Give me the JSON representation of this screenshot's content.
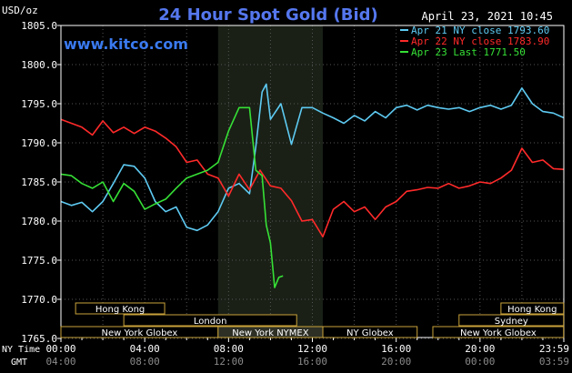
{
  "header": {
    "title": "24 Hour Spot Gold (Bid)",
    "timestamp": "April 23, 2021 10:45",
    "unit": "USD/oz",
    "site": "www.kitco.com"
  },
  "chart_data": {
    "type": "line",
    "title": "24 Hour Spot Gold (Bid)",
    "ylabel": "USD/oz",
    "ylim": [
      1765.0,
      1805.0
    ],
    "yticks": [
      "1805.0",
      "1800.0",
      "1795.0",
      "1790.0",
      "1785.0",
      "1780.0",
      "1775.0",
      "1770.0",
      "1765.0"
    ],
    "x_range_hours": [
      0,
      24
    ],
    "xticks_ny": [
      "00:00",
      "04:00",
      "08:00",
      "12:00",
      "16:00",
      "20:00",
      "23:59"
    ],
    "xticks_gmt": [
      "04:00",
      "08:00",
      "12:00",
      "16:00",
      "20:00",
      "00:00",
      "03:59"
    ],
    "x_row_labels": {
      "ny": "NY Time",
      "gmt": "GMT"
    },
    "grid": true,
    "legend_position": "top-right",
    "highlight_hours": [
      7.5,
      12.5
    ],
    "series": [
      {
        "name": "Apr 21 NY close 1793.60",
        "color": "#5ecaf2",
        "points": [
          [
            0,
            1782.5
          ],
          [
            0.5,
            1782.0
          ],
          [
            1.0,
            1782.4
          ],
          [
            1.5,
            1781.2
          ],
          [
            2.0,
            1782.5
          ],
          [
            2.5,
            1784.8
          ],
          [
            3.0,
            1787.2
          ],
          [
            3.5,
            1787.0
          ],
          [
            4.0,
            1785.5
          ],
          [
            4.5,
            1782.5
          ],
          [
            5.0,
            1781.2
          ],
          [
            5.5,
            1781.8
          ],
          [
            6.0,
            1779.2
          ],
          [
            6.5,
            1778.8
          ],
          [
            7.0,
            1779.5
          ],
          [
            7.5,
            1781.2
          ],
          [
            8.0,
            1784.2
          ],
          [
            8.5,
            1784.8
          ],
          [
            9.0,
            1783.5
          ],
          [
            9.3,
            1789.5
          ],
          [
            9.6,
            1796.5
          ],
          [
            9.8,
            1797.5
          ],
          [
            10.0,
            1793.0
          ],
          [
            10.5,
            1795.0
          ],
          [
            11.0,
            1789.8
          ],
          [
            11.5,
            1794.5
          ],
          [
            12.0,
            1794.5
          ],
          [
            12.5,
            1793.8
          ],
          [
            13.0,
            1793.2
          ],
          [
            13.5,
            1792.5
          ],
          [
            14.0,
            1793.5
          ],
          [
            14.5,
            1792.8
          ],
          [
            15.0,
            1794.0
          ],
          [
            15.5,
            1793.2
          ],
          [
            16.0,
            1794.5
          ],
          [
            16.5,
            1794.8
          ],
          [
            17.0,
            1794.2
          ],
          [
            17.5,
            1794.8
          ],
          [
            18.0,
            1794.5
          ],
          [
            18.5,
            1794.3
          ],
          [
            19.0,
            1794.5
          ],
          [
            19.5,
            1794.0
          ],
          [
            20.0,
            1794.5
          ],
          [
            20.5,
            1794.8
          ],
          [
            21.0,
            1794.3
          ],
          [
            21.5,
            1794.8
          ],
          [
            22.0,
            1797.0
          ],
          [
            22.5,
            1795.0
          ],
          [
            23.0,
            1794.0
          ],
          [
            23.5,
            1793.8
          ],
          [
            24.0,
            1793.2
          ]
        ]
      },
      {
        "name": "Apr 22 NY close 1783.90",
        "color": "#ff2a2a",
        "points": [
          [
            0,
            1793.0
          ],
          [
            0.5,
            1792.5
          ],
          [
            1.0,
            1792.0
          ],
          [
            1.5,
            1791.0
          ],
          [
            2.0,
            1792.8
          ],
          [
            2.5,
            1791.3
          ],
          [
            3.0,
            1792.0
          ],
          [
            3.5,
            1791.2
          ],
          [
            4.0,
            1792.0
          ],
          [
            4.5,
            1791.5
          ],
          [
            5.0,
            1790.6
          ],
          [
            5.5,
            1789.5
          ],
          [
            6.0,
            1787.5
          ],
          [
            6.5,
            1787.8
          ],
          [
            7.0,
            1786.0
          ],
          [
            7.5,
            1785.5
          ],
          [
            8.0,
            1783.2
          ],
          [
            8.5,
            1786.0
          ],
          [
            9.0,
            1784.0
          ],
          [
            9.5,
            1786.5
          ],
          [
            10.0,
            1784.5
          ],
          [
            10.5,
            1784.2
          ],
          [
            11.0,
            1782.6
          ],
          [
            11.5,
            1780.0
          ],
          [
            12.0,
            1780.2
          ],
          [
            12.5,
            1778.0
          ],
          [
            13.0,
            1781.5
          ],
          [
            13.5,
            1782.5
          ],
          [
            14.0,
            1781.2
          ],
          [
            14.5,
            1781.8
          ],
          [
            15.0,
            1780.2
          ],
          [
            15.5,
            1781.8
          ],
          [
            16.0,
            1782.5
          ],
          [
            16.5,
            1783.8
          ],
          [
            17.0,
            1784.0
          ],
          [
            17.5,
            1784.3
          ],
          [
            18.0,
            1784.2
          ],
          [
            18.5,
            1784.8
          ],
          [
            19.0,
            1784.2
          ],
          [
            19.5,
            1784.5
          ],
          [
            20.0,
            1785.0
          ],
          [
            20.5,
            1784.8
          ],
          [
            21.0,
            1785.5
          ],
          [
            21.5,
            1786.5
          ],
          [
            22.0,
            1789.3
          ],
          [
            22.5,
            1787.5
          ],
          [
            23.0,
            1787.8
          ],
          [
            23.5,
            1786.7
          ],
          [
            24.0,
            1786.6
          ]
        ]
      },
      {
        "name": "Apr 23 Last 1771.50",
        "color": "#36e036",
        "points": [
          [
            0,
            1786.0
          ],
          [
            0.5,
            1785.8
          ],
          [
            1.0,
            1784.8
          ],
          [
            1.5,
            1784.2
          ],
          [
            2.0,
            1785.0
          ],
          [
            2.5,
            1782.5
          ],
          [
            3.0,
            1784.8
          ],
          [
            3.5,
            1783.8
          ],
          [
            4.0,
            1781.5
          ],
          [
            4.5,
            1782.2
          ],
          [
            5.0,
            1782.8
          ],
          [
            5.5,
            1784.2
          ],
          [
            6.0,
            1785.5
          ],
          [
            6.5,
            1786.0
          ],
          [
            7.0,
            1786.5
          ],
          [
            7.5,
            1787.5
          ],
          [
            8.0,
            1791.5
          ],
          [
            8.5,
            1794.5
          ],
          [
            9.0,
            1794.5
          ],
          [
            9.3,
            1786.5
          ],
          [
            9.6,
            1785.8
          ],
          [
            9.8,
            1779.5
          ],
          [
            10.0,
            1777.2
          ],
          [
            10.2,
            1771.5
          ],
          [
            10.4,
            1772.8
          ],
          [
            10.6,
            1773.0
          ]
        ]
      }
    ]
  },
  "sessions": [
    {
      "label": "Hong Kong",
      "start": 0.7,
      "end": 4.95,
      "row": 0,
      "active": false
    },
    {
      "label": "Hong Kong",
      "start": 21.0,
      "end": 23.99,
      "row": 0,
      "active": false
    },
    {
      "label": "London",
      "start": 3.0,
      "end": 11.25,
      "row": 1,
      "active": false
    },
    {
      "label": "Sydney",
      "start": 19.0,
      "end": 23.99,
      "row": 1,
      "active": false
    },
    {
      "label": "New York Globex",
      "start": 0.0,
      "end": 7.5,
      "row": 2,
      "active": false
    },
    {
      "label": "New York NYMEX",
      "start": 7.5,
      "end": 12.5,
      "row": 2,
      "active": true
    },
    {
      "label": "NY Globex",
      "start": 12.5,
      "end": 17.0,
      "row": 2,
      "active": false
    },
    {
      "label": "New York Globex",
      "start": 17.75,
      "end": 23.99,
      "row": 2,
      "active": false
    }
  ]
}
